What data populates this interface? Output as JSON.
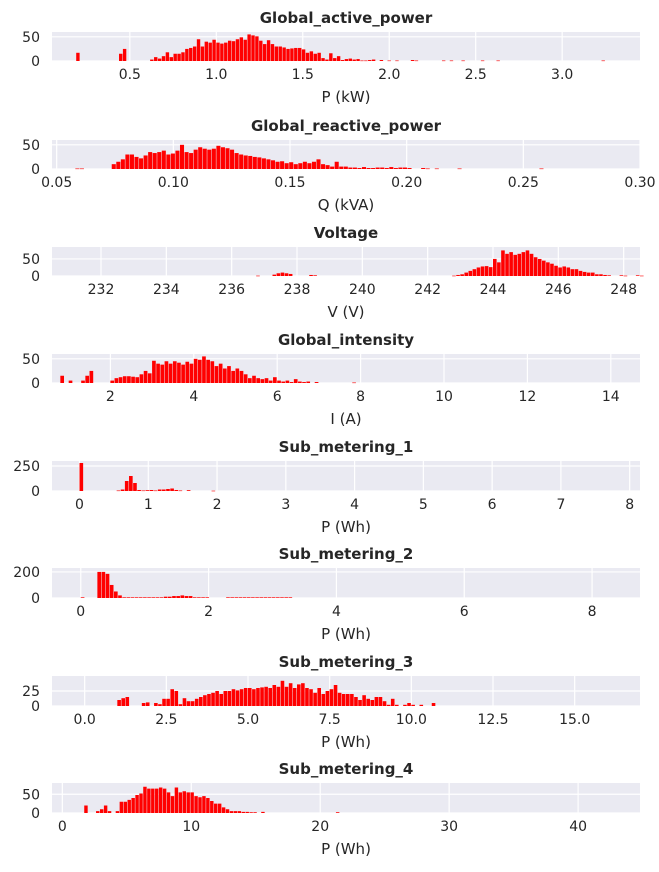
{
  "colors": {
    "bar": "#ff0000",
    "panel_bg": "#eaeaf2",
    "grid": "#ffffff",
    "text": "#262626"
  },
  "chart_data": [
    {
      "type": "bar",
      "title": "Global_active_power",
      "xlabel": "P (kW)",
      "ylabel": "",
      "xlim": [
        0.05,
        3.45
      ],
      "ylim": [
        0,
        60
      ],
      "grid": true,
      "legend": "none",
      "xticks": [
        0.5,
        1.0,
        1.5,
        2.0,
        2.5,
        3.0
      ],
      "xtick_labels": [
        "0.5",
        "1.0",
        "1.5",
        "2.0",
        "2.5",
        "3.0"
      ],
      "yticks": [
        0,
        50
      ],
      "ytick_labels": [
        "0",
        "50"
      ],
      "bins": {
        "start": 0.19,
        "width": 0.0225
      },
      "values": [
        17,
        0,
        0,
        0,
        0,
        0,
        0,
        0,
        0,
        0,
        0,
        15,
        25,
        0,
        0,
        0,
        0,
        0,
        0,
        3,
        8,
        5,
        10,
        18,
        8,
        15,
        15,
        18,
        25,
        27,
        30,
        45,
        30,
        40,
        38,
        44,
        38,
        36,
        38,
        42,
        41,
        45,
        49,
        44,
        55,
        53,
        51,
        42,
        35,
        43,
        35,
        30,
        30,
        28,
        25,
        26,
        27,
        27,
        24,
        17,
        20,
        15,
        17,
        6,
        3,
        16,
        6,
        10,
        2,
        4,
        5,
        3,
        4,
        1,
        1,
        2,
        3,
        0,
        2,
        0,
        1,
        0,
        1,
        0,
        0,
        0,
        2,
        1,
        0,
        0,
        0,
        0,
        0,
        0,
        1,
        0,
        1,
        0,
        0,
        1,
        0,
        0,
        0,
        0,
        1,
        0,
        0,
        0,
        1,
        0,
        0,
        0,
        0,
        0,
        0,
        0,
        0,
        0,
        0,
        0,
        0,
        0,
        0,
        0,
        0,
        0,
        0,
        0,
        0,
        0,
        0,
        0,
        0,
        0,
        0,
        1
      ]
    },
    {
      "type": "bar",
      "title": "Global_reactive_power",
      "xlabel": "Q (kVA)",
      "ylabel": "",
      "xlim": [
        0.048,
        0.3
      ],
      "ylim": [
        0,
        60
      ],
      "grid": true,
      "legend": "none",
      "xticks": [
        0.05,
        0.1,
        0.15,
        0.2,
        0.25,
        0.3
      ],
      "xtick_labels": [
        "0.05",
        "0.10",
        "0.15",
        "0.20",
        "0.25",
        "0.30"
      ],
      "yticks": [
        0,
        50
      ],
      "ytick_labels": [
        "0",
        "50"
      ],
      "bins": {
        "start": 0.058,
        "width": 0.00195
      },
      "values": [
        1,
        1,
        0,
        0,
        0,
        0,
        0,
        0,
        10,
        15,
        20,
        30,
        30,
        25,
        22,
        28,
        35,
        33,
        35,
        38,
        30,
        32,
        38,
        50,
        35,
        33,
        40,
        45,
        42,
        40,
        42,
        48,
        45,
        43,
        40,
        33,
        30,
        28,
        27,
        25,
        24,
        22,
        20,
        18,
        15,
        16,
        12,
        14,
        10,
        12,
        15,
        12,
        15,
        20,
        10,
        8,
        5,
        15,
        5,
        5,
        3,
        3,
        2,
        4,
        2,
        2,
        3,
        3,
        2,
        4,
        2,
        3,
        3,
        2,
        0,
        0,
        2,
        1,
        0,
        1,
        0,
        0,
        0,
        0,
        1,
        0,
        0,
        0,
        0,
        0,
        0,
        0,
        0,
        0,
        0,
        0,
        0,
        0,
        0,
        0,
        0,
        0,
        1,
        0,
        0,
        0,
        0,
        0,
        0,
        0,
        0,
        0,
        0,
        0,
        0,
        0,
        0,
        0,
        0,
        0,
        0,
        0,
        0,
        0,
        0,
        0,
        0,
        0,
        0,
        0,
        0,
        0,
        0,
        0,
        0,
        0,
        1
      ]
    },
    {
      "type": "bar",
      "title": "Voltage",
      "xlabel": "V (V)",
      "ylabel": "",
      "xlim": [
        230.5,
        248.5
      ],
      "ylim": [
        0,
        85
      ],
      "grid": true,
      "legend": "none",
      "xticks": [
        232,
        234,
        236,
        238,
        240,
        242,
        244,
        246,
        248
      ],
      "xtick_labels": [
        "232",
        "234",
        "236",
        "238",
        "240",
        "242",
        "244",
        "246",
        "248"
      ],
      "yticks": [
        0,
        50
      ],
      "ytick_labels": [
        "0",
        "50"
      ],
      "bins": {
        "start": 231.0,
        "width": 0.125
      },
      "values": [
        0,
        0,
        0,
        0,
        0,
        0,
        0,
        0,
        0,
        0,
        0,
        0,
        0,
        0,
        0,
        0,
        0,
        0,
        0,
        0,
        0,
        0,
        0,
        0,
        0,
        0,
        0,
        0,
        0,
        0,
        0,
        0,
        0,
        0,
        0,
        0,
        0,
        0,
        0,
        0,
        0,
        0,
        0,
        0,
        0,
        0,
        1,
        0,
        0,
        0,
        4,
        8,
        10,
        8,
        6,
        0,
        0,
        0,
        0,
        3,
        2,
        0,
        0,
        0,
        0,
        0,
        0,
        0,
        0,
        0,
        0,
        0,
        0,
        0,
        0,
        0,
        0,
        0,
        0,
        0,
        0,
        0,
        0,
        0,
        0,
        0,
        0,
        0,
        0,
        0,
        0,
        0,
        0,
        0,
        1,
        3,
        5,
        10,
        15,
        20,
        25,
        28,
        29,
        26,
        50,
        40,
        75,
        65,
        70,
        62,
        65,
        70,
        75,
        65,
        55,
        50,
        45,
        40,
        36,
        30,
        25,
        28,
        25,
        20,
        20,
        15,
        12,
        10,
        10,
        5,
        5,
        3,
        2,
        0,
        0,
        2,
        1,
        0,
        0,
        2,
        1,
        0,
        0,
        0,
        0,
        0,
        0,
        0,
        0,
        0,
        0,
        0,
        0,
        0,
        0,
        0,
        0,
        0,
        0,
        0,
        0,
        0,
        0,
        0,
        0,
        0,
        0,
        0,
        0,
        0,
        0,
        0,
        0,
        0,
        0,
        0,
        0,
        0,
        0,
        0,
        0,
        0,
        0,
        0,
        0,
        0,
        0,
        0,
        0,
        0,
        0,
        0,
        0,
        0
      ]
    },
    {
      "type": "bar",
      "title": "Global_intensity",
      "xlabel": "I (A)",
      "ylabel": "",
      "xlim": [
        0.6,
        14.7
      ],
      "ylim": [
        0,
        60
      ],
      "grid": true,
      "legend": "none",
      "xticks": [
        2,
        4,
        6,
        8,
        10,
        12,
        14
      ],
      "xtick_labels": [
        "2",
        "4",
        "6",
        "8",
        "10",
        "12",
        "14"
      ],
      "yticks": [
        0,
        50
      ],
      "ytick_labels": [
        "0",
        "50"
      ],
      "bins": {
        "start": 0.8,
        "width": 0.1
      },
      "values": [
        15,
        0,
        5,
        0,
        0,
        5,
        15,
        25,
        0,
        0,
        0,
        0,
        5,
        10,
        12,
        14,
        14,
        13,
        12,
        18,
        25,
        20,
        46,
        40,
        38,
        45,
        40,
        45,
        42,
        38,
        44,
        40,
        50,
        48,
        55,
        48,
        45,
        35,
        40,
        30,
        35,
        25,
        30,
        25,
        18,
        10,
        15,
        10,
        8,
        10,
        5,
        12,
        5,
        3,
        5,
        2,
        8,
        3,
        2,
        3,
        0,
        2,
        0,
        0,
        0,
        0,
        0,
        0,
        0,
        0,
        1,
        0,
        0,
        0,
        0,
        0,
        0,
        0,
        0,
        0,
        0,
        0,
        0,
        0,
        0,
        0,
        0,
        0,
        0,
        0,
        0,
        0,
        0,
        0,
        0,
        0,
        0,
        0,
        0,
        0,
        0,
        0,
        0,
        0,
        0,
        0,
        0,
        0,
        0,
        0,
        0,
        0,
        0,
        0,
        0,
        0,
        0,
        0,
        0,
        0,
        0,
        0,
        0,
        0,
        0,
        0,
        0,
        0,
        0,
        0,
        0,
        0,
        0,
        0,
        0,
        0,
        0,
        0,
        0,
        0
      ]
    },
    {
      "type": "bar",
      "title": "Sub_metering_1",
      "xlabel": "P (Wh)",
      "ylabel": "",
      "xlim": [
        -0.4,
        8.15
      ],
      "ylim": [
        0,
        300
      ],
      "grid": true,
      "legend": "none",
      "xticks": [
        0,
        1,
        2,
        3,
        4,
        5,
        6,
        7,
        8
      ],
      "xtick_labels": [
        "0",
        "1",
        "2",
        "3",
        "4",
        "5",
        "6",
        "7",
        "8"
      ],
      "yticks": [
        0,
        250
      ],
      "ytick_labels": [
        "0",
        "250"
      ],
      "bins": {
        "start": 0.0,
        "width": 0.06
      },
      "values": [
        280,
        0,
        0,
        0,
        0,
        0,
        0,
        0,
        0,
        5,
        15,
        100,
        150,
        80,
        10,
        5,
        8,
        10,
        5,
        15,
        15,
        20,
        25,
        10,
        5,
        0,
        8,
        0,
        0,
        0,
        0,
        0,
        3,
        0,
        0,
        0,
        0,
        0,
        0,
        0,
        0,
        0,
        0,
        0,
        0,
        0,
        0,
        0,
        0,
        0,
        0,
        0,
        0,
        0,
        0,
        0,
        0,
        0,
        0,
        0,
        0,
        0,
        0,
        0,
        0,
        0,
        0,
        0,
        0,
        0,
        0,
        0,
        0,
        0,
        0,
        0,
        0,
        0,
        0,
        0,
        0,
        0,
        0,
        0,
        0,
        0,
        0,
        0,
        0,
        0,
        0,
        0,
        0,
        0,
        0,
        0,
        0,
        0,
        0,
        0,
        0,
        0,
        0,
        0,
        0,
        0,
        0,
        0,
        0,
        0,
        0,
        0,
        0,
        0,
        0,
        0,
        0,
        0,
        0,
        0,
        0,
        0,
        0,
        0,
        0,
        0,
        0,
        0,
        0,
        0,
        0,
        0,
        0,
        0
      ]
    },
    {
      "type": "bar",
      "title": "Sub_metering_2",
      "xlabel": "P (Wh)",
      "ylabel": "",
      "xlim": [
        -0.45,
        8.75
      ],
      "ylim": [
        0,
        230
      ],
      "grid": true,
      "legend": "none",
      "xticks": [
        0,
        2,
        4,
        6,
        8
      ],
      "xtick_labels": [
        "0",
        "2",
        "4",
        "6",
        "8"
      ],
      "yticks": [
        0,
        200
      ],
      "ytick_labels": [
        "0",
        "200"
      ],
      "bins": {
        "start": 0.0,
        "width": 0.065
      },
      "values": [
        5,
        0,
        0,
        0,
        200,
        200,
        185,
        100,
        50,
        20,
        5,
        5,
        5,
        5,
        5,
        5,
        5,
        5,
        5,
        5,
        10,
        10,
        15,
        15,
        20,
        15,
        15,
        5,
        5,
        5,
        5,
        0,
        0,
        0,
        0,
        5,
        5,
        5,
        5,
        5,
        5,
        5,
        5,
        5,
        5,
        5,
        5,
        5,
        5,
        5,
        5,
        0,
        0,
        0,
        0,
        0,
        0,
        0,
        0,
        0,
        0,
        0,
        0,
        0,
        0,
        0,
        0,
        0,
        0,
        0,
        0,
        0,
        0,
        0,
        0,
        0,
        0,
        0,
        0,
        0,
        0,
        0,
        0,
        0,
        0,
        0,
        0,
        0,
        0,
        0,
        0,
        0,
        0,
        0,
        0,
        0,
        0,
        0,
        0,
        0,
        0,
        0,
        0,
        0,
        0,
        0,
        0,
        0,
        0,
        0,
        0,
        0,
        0,
        0,
        0,
        0,
        0,
        0,
        0,
        0,
        0,
        0,
        0,
        0,
        0,
        0,
        0,
        0,
        0,
        0,
        0,
        0,
        0,
        0
      ]
    },
    {
      "type": "bar",
      "title": "Sub_metering_3",
      "xlabel": "P (Wh)",
      "ylabel": "",
      "xlim": [
        -1.0,
        17.0
      ],
      "ylim": [
        0,
        50
      ],
      "grid": true,
      "legend": "none",
      "xticks": [
        0.0,
        2.5,
        5.0,
        7.5,
        10.0,
        12.5,
        15.0
      ],
      "xtick_labels": [
        "0.0",
        "2.5",
        "5.0",
        "7.5",
        "10.0",
        "12.5",
        "15.0"
      ],
      "yticks": [
        0,
        25
      ],
      "ytick_labels": [
        "0",
        "25"
      ],
      "bins": {
        "start": 1.0,
        "width": 0.125
      },
      "values": [
        10,
        13,
        15,
        0,
        0,
        0,
        5,
        6,
        0,
        5,
        3,
        12,
        12,
        28,
        25,
        3,
        13,
        8,
        8,
        12,
        15,
        18,
        20,
        22,
        25,
        20,
        25,
        25,
        28,
        26,
        28,
        30,
        30,
        28,
        30,
        31,
        32,
        30,
        35,
        32,
        42,
        32,
        38,
        30,
        36,
        38,
        30,
        28,
        22,
        30,
        20,
        25,
        28,
        35,
        22,
        20,
        20,
        20,
        15,
        10,
        18,
        12,
        10,
        15,
        15,
        8,
        2,
        12,
        2,
        0,
        2,
        5,
        2,
        0,
        2,
        0,
        0,
        5,
        0,
        0,
        0,
        0,
        0,
        0,
        0,
        0,
        0,
        0,
        0,
        0,
        0,
        0,
        0,
        0,
        0,
        0,
        0,
        0,
        0,
        0,
        0,
        0,
        0,
        0,
        0,
        0,
        0,
        0,
        0,
        0,
        0,
        0,
        0,
        0,
        0,
        0,
        0,
        0,
        0,
        0,
        0,
        0,
        0,
        0
      ]
    },
    {
      "type": "bar",
      "title": "Sub_metering_4",
      "xlabel": "P (Wh)",
      "ylabel": "",
      "xlim": [
        -0.8,
        44.8
      ],
      "ylim": [
        0,
        80
      ],
      "grid": true,
      "legend": "none",
      "xticks": [
        0,
        10,
        20,
        30,
        40
      ],
      "xtick_labels": [
        "0",
        "10",
        "20",
        "30",
        "40"
      ],
      "yticks": [
        0,
        50
      ],
      "ytick_labels": [
        "0",
        "50"
      ],
      "bins": {
        "start": 1.7,
        "width": 0.305
      },
      "values": [
        20,
        0,
        0,
        5,
        10,
        20,
        5,
        0,
        5,
        30,
        30,
        35,
        40,
        48,
        52,
        70,
        65,
        65,
        65,
        68,
        65,
        55,
        45,
        68,
        55,
        58,
        55,
        55,
        45,
        42,
        45,
        40,
        32,
        25,
        25,
        15,
        10,
        5,
        5,
        5,
        3,
        3,
        2,
        2,
        0,
        3,
        0,
        0,
        0,
        0,
        0,
        0,
        0,
        0,
        0,
        0,
        0,
        0,
        0,
        0,
        0,
        0,
        0,
        0,
        2,
        0,
        0,
        0,
        0,
        0,
        0,
        0,
        0,
        0,
        0,
        0,
        0,
        0,
        0,
        0,
        0,
        0,
        0,
        0,
        0,
        0,
        0,
        0,
        0,
        0,
        0,
        0,
        0,
        0,
        0,
        0,
        0,
        0,
        0,
        0,
        0,
        0,
        0,
        0,
        0,
        0,
        0,
        0,
        0,
        0,
        0,
        0,
        0,
        0,
        0,
        0,
        0,
        0,
        0,
        0,
        0,
        0,
        0,
        0,
        0,
        0,
        0,
        0,
        0,
        0,
        0
      ]
    }
  ]
}
